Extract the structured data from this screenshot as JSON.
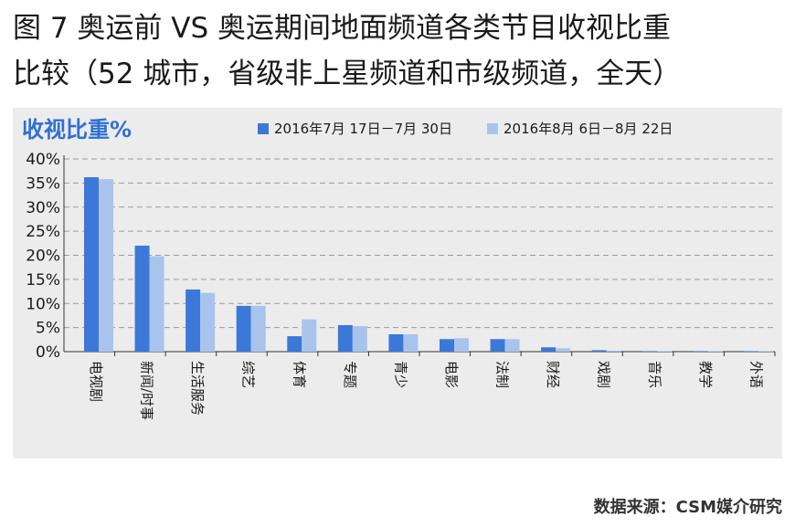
{
  "figure": {
    "title_line1": "图 7  奥运前 VS 奥运期间地面频道各类节目收视比重",
    "title_line2": "比较（52 城市，省级非上星频道和市级频道，全天）",
    "source": "数据来源：CSM媒介研究"
  },
  "chart_data": {
    "type": "bar",
    "ylabel": "收视比重%",
    "ylim": [
      0,
      40
    ],
    "yticks": [
      "0%",
      "5%",
      "10%",
      "15%",
      "20%",
      "25%",
      "30%",
      "35%",
      "40%"
    ],
    "grid": true,
    "legend_position": "top",
    "categories": [
      "电视剧",
      "新闻/时事",
      "生活服务",
      "综艺",
      "体育",
      "专题",
      "青少",
      "电影",
      "法制",
      "财经",
      "戏剧",
      "音乐",
      "教学",
      "外语"
    ],
    "series": [
      {
        "name": "2016年7月 17日－7月 30日",
        "color": "#3b78d8",
        "values": [
          36.2,
          22.0,
          12.9,
          9.5,
          3.2,
          5.5,
          3.6,
          2.6,
          2.6,
          0.9,
          0.3,
          0.1,
          0.1,
          0.1
        ]
      },
      {
        "name": "2016年8月 6日－8月 22日",
        "color": "#a9c4ec",
        "values": [
          35.8,
          19.8,
          12.2,
          9.5,
          6.7,
          5.3,
          3.6,
          2.8,
          2.6,
          0.7,
          0.2,
          0.1,
          0.1,
          0.1
        ]
      }
    ]
  }
}
